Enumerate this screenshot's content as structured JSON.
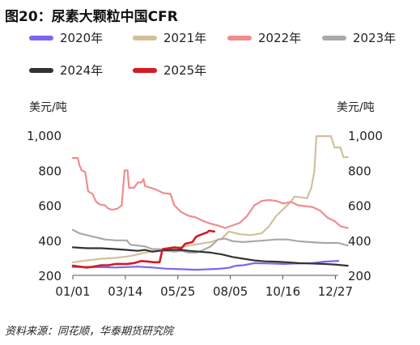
{
  "title": "图20：尿素大颗粒中国CFR",
  "source": "资料来源：同花顺，华泰期货研究院",
  "chart_data": {
    "type": "line",
    "y_unit_left": "美元/吨",
    "y_unit_right": "美元/吨",
    "ylim": [
      200,
      1000
    ],
    "yticks": [
      200,
      400,
      600,
      800,
      1000
    ],
    "ytick_labels": [
      "200",
      "400",
      "600",
      "800",
      "1,000"
    ],
    "xlim": [
      1,
      365
    ],
    "xticks": [
      1,
      73,
      145,
      217,
      289,
      361
    ],
    "xtick_labels": [
      "01/01",
      "03/14",
      "05/25",
      "08/05",
      "10/16",
      "12/27"
    ],
    "legend_position": "top",
    "grid": false,
    "series": [
      {
        "name": "2020年",
        "color": "#7b68ee",
        "points": [
          [
            1,
            248
          ],
          [
            30,
            248
          ],
          [
            60,
            245
          ],
          [
            90,
            250
          ],
          [
            110,
            245
          ],
          [
            130,
            238
          ],
          [
            150,
            235
          ],
          [
            170,
            232
          ],
          [
            200,
            237
          ],
          [
            215,
            243
          ],
          [
            225,
            255
          ],
          [
            235,
            258
          ],
          [
            250,
            270
          ],
          [
            270,
            268
          ],
          [
            290,
            265
          ],
          [
            310,
            268
          ],
          [
            330,
            270
          ],
          [
            345,
            278
          ],
          [
            365,
            283
          ]
        ]
      },
      {
        "name": "2021年",
        "color": "#d2c09c",
        "points": [
          [
            1,
            275
          ],
          [
            20,
            285
          ],
          [
            40,
            295
          ],
          [
            60,
            300
          ],
          [
            80,
            310
          ],
          [
            100,
            330
          ],
          [
            120,
            345
          ],
          [
            140,
            355
          ],
          [
            160,
            370
          ],
          [
            175,
            380
          ],
          [
            190,
            390
          ],
          [
            205,
            410
          ],
          [
            215,
            450
          ],
          [
            230,
            435
          ],
          [
            245,
            430
          ],
          [
            260,
            440
          ],
          [
            270,
            480
          ],
          [
            280,
            540
          ],
          [
            290,
            580
          ],
          [
            300,
            620
          ],
          [
            305,
            650
          ],
          [
            315,
            645
          ],
          [
            322,
            640
          ],
          [
            328,
            700
          ],
          [
            332,
            790
          ],
          [
            335,
            995
          ],
          [
            355,
            995
          ],
          [
            360,
            930
          ],
          [
            368,
            930
          ],
          [
            372,
            875
          ],
          [
            378,
            875
          ]
        ]
      },
      {
        "name": "2022年",
        "color": "#f08c90",
        "points": [
          [
            1,
            870
          ],
          [
            8,
            870
          ],
          [
            10,
            830
          ],
          [
            13,
            800
          ],
          [
            18,
            790
          ],
          [
            22,
            680
          ],
          [
            28,
            665
          ],
          [
            33,
            620
          ],
          [
            38,
            605
          ],
          [
            45,
            600
          ],
          [
            50,
            580
          ],
          [
            55,
            575
          ],
          [
            62,
            580
          ],
          [
            68,
            600
          ],
          [
            72,
            800
          ],
          [
            76,
            800
          ],
          [
            78,
            700
          ],
          [
            85,
            700
          ],
          [
            90,
            730
          ],
          [
            95,
            730
          ],
          [
            98,
            750
          ],
          [
            100,
            710
          ],
          [
            115,
            690
          ],
          [
            125,
            670
          ],
          [
            135,
            665
          ],
          [
            140,
            600
          ],
          [
            150,
            560
          ],
          [
            160,
            540
          ],
          [
            170,
            530
          ],
          [
            180,
            510
          ],
          [
            190,
            495
          ],
          [
            200,
            485
          ],
          [
            210,
            470
          ],
          [
            220,
            485
          ],
          [
            230,
            500
          ],
          [
            240,
            540
          ],
          [
            250,
            600
          ],
          [
            260,
            625
          ],
          [
            270,
            630
          ],
          [
            280,
            625
          ],
          [
            290,
            610
          ],
          [
            300,
            620
          ],
          [
            310,
            600
          ],
          [
            320,
            595
          ],
          [
            330,
            590
          ],
          [
            340,
            570
          ],
          [
            350,
            530
          ],
          [
            360,
            510
          ],
          [
            368,
            480
          ],
          [
            378,
            470
          ]
        ]
      },
      {
        "name": "2023年",
        "color": "#a9a9a9",
        "points": [
          [
            1,
            460
          ],
          [
            10,
            440
          ],
          [
            20,
            430
          ],
          [
            30,
            420
          ],
          [
            45,
            405
          ],
          [
            60,
            400
          ],
          [
            75,
            400
          ],
          [
            80,
            375
          ],
          [
            90,
            370
          ],
          [
            100,
            365
          ],
          [
            110,
            350
          ],
          [
            120,
            350
          ],
          [
            130,
            340
          ],
          [
            140,
            335
          ],
          [
            150,
            340
          ],
          [
            160,
            330
          ],
          [
            170,
            330
          ],
          [
            180,
            345
          ],
          [
            190,
            365
          ],
          [
            200,
            405
          ],
          [
            210,
            410
          ],
          [
            220,
            395
          ],
          [
            235,
            390
          ],
          [
            250,
            395
          ],
          [
            265,
            400
          ],
          [
            280,
            405
          ],
          [
            295,
            405
          ],
          [
            310,
            395
          ],
          [
            325,
            390
          ],
          [
            345,
            385
          ],
          [
            365,
            385
          ],
          [
            378,
            370
          ]
        ]
      },
      {
        "name": "2024年",
        "color": "#333333",
        "points": [
          [
            1,
            360
          ],
          [
            20,
            355
          ],
          [
            40,
            355
          ],
          [
            60,
            350
          ],
          [
            75,
            345
          ],
          [
            90,
            340
          ],
          [
            100,
            345
          ],
          [
            110,
            335
          ],
          [
            120,
            340
          ],
          [
            135,
            345
          ],
          [
            150,
            345
          ],
          [
            160,
            340
          ],
          [
            175,
            335
          ],
          [
            190,
            330
          ],
          [
            205,
            320
          ],
          [
            220,
            305
          ],
          [
            235,
            295
          ],
          [
            250,
            285
          ],
          [
            265,
            280
          ],
          [
            280,
            278
          ],
          [
            295,
            275
          ],
          [
            310,
            270
          ],
          [
            325,
            268
          ],
          [
            345,
            265
          ],
          [
            360,
            262
          ],
          [
            378,
            255
          ]
        ]
      },
      {
        "name": "2025年",
        "color": "#d71920",
        "points": [
          [
            1,
            255
          ],
          [
            10,
            250
          ],
          [
            20,
            245
          ],
          [
            30,
            250
          ],
          [
            40,
            258
          ],
          [
            50,
            258
          ],
          [
            60,
            265
          ],
          [
            75,
            265
          ],
          [
            85,
            270
          ],
          [
            95,
            282
          ],
          [
            105,
            278
          ],
          [
            112,
            275
          ],
          [
            120,
            275
          ],
          [
            124,
            350
          ],
          [
            140,
            360
          ],
          [
            150,
            355
          ],
          [
            155,
            380
          ],
          [
            165,
            390
          ],
          [
            170,
            420
          ],
          [
            175,
            430
          ],
          [
            185,
            445
          ],
          [
            188,
            455
          ],
          [
            195,
            450
          ]
        ]
      }
    ]
  }
}
